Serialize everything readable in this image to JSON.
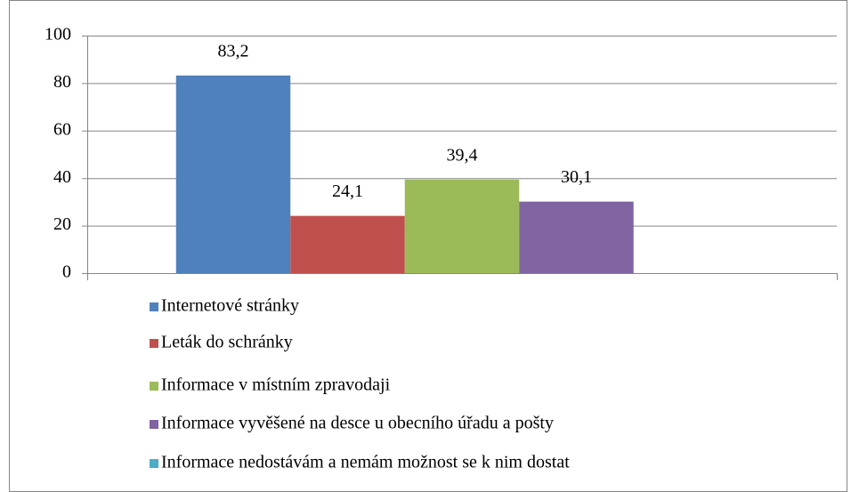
{
  "chart_data": {
    "type": "bar",
    "categories": [
      null
    ],
    "series": [
      {
        "name": "Internetové stránky",
        "color": "#4F81BD",
        "values": [
          83.2
        ],
        "value_labels": [
          "83,2"
        ]
      },
      {
        "name": "Leták do schránky",
        "color": "#C0504D",
        "values": [
          24.1
        ],
        "value_labels": [
          "24,1"
        ]
      },
      {
        "name": "Informace v místním zpravodaji",
        "color": "#9BBB59",
        "values": [
          39.4
        ],
        "value_labels": [
          "39,4"
        ]
      },
      {
        "name": "Informace vyvěšené na desce u obecního úřadu a pošty",
        "color": "#8064A2",
        "values": [
          30.1
        ],
        "value_labels": [
          "30,1"
        ]
      },
      {
        "name": "Informace nedostávám a nemám možnost se k nim dostat",
        "color": "#4BACC6",
        "values": [
          null
        ],
        "value_labels": [
          null
        ]
      }
    ],
    "ylim": [
      0,
      100
    ],
    "yticks": [
      0,
      20,
      40,
      60,
      80,
      100
    ],
    "grid": true,
    "legend": "bottom"
  }
}
